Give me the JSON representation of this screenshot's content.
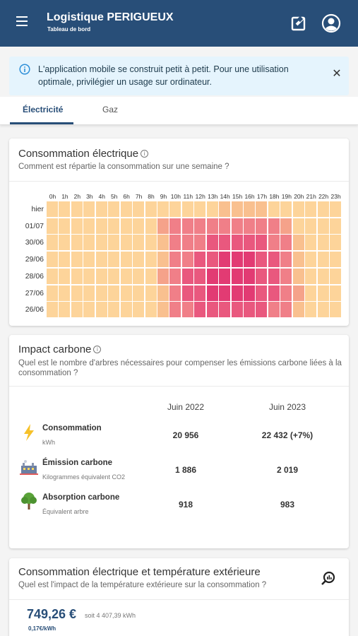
{
  "header": {
    "title": "Logistique PERIGUEUX",
    "subtitle": "Tableau de bord",
    "background": "#284e78"
  },
  "alert": {
    "text": "L'application mobile se construit petit à petit. Pour une utilisation optimale, privilégier un usage sur ordinateur.",
    "close": "✕"
  },
  "tabs": [
    {
      "label": "Électricité",
      "active": true
    },
    {
      "label": "Gaz",
      "active": false
    }
  ],
  "consumption": {
    "title": "Consommation électrique",
    "info": "i",
    "subtitle": "Comment est répartie la consommation sur une semaine ?",
    "hours": [
      "0h",
      "1h",
      "2h",
      "3h",
      "4h",
      "5h",
      "6h",
      "7h",
      "8h",
      "9h",
      "10h",
      "11h",
      "12h",
      "13h",
      "14h",
      "15h",
      "16h",
      "17h",
      "18h",
      "19h",
      "20h",
      "21h",
      "22h",
      "23h"
    ],
    "days": [
      "hier",
      "01/07",
      "30/06",
      "29/06",
      "28/06",
      "27/06",
      "26/06"
    ],
    "palette": [
      "#fdd49a",
      "#f9c08f",
      "#f5a28a",
      "#f07f88",
      "#e9587e",
      "#e23b73"
    ],
    "levels": [
      [
        0,
        0,
        0,
        0,
        0,
        0,
        0,
        0,
        0,
        0,
        0,
        0,
        0,
        0,
        1,
        1,
        1,
        1,
        0,
        0,
        0,
        0,
        0,
        0
      ],
      [
        0,
        0,
        0,
        0,
        0,
        0,
        0,
        0,
        0,
        2,
        3,
        3,
        3,
        3,
        3,
        3,
        3,
        3,
        3,
        2,
        0,
        0,
        0,
        0
      ],
      [
        0,
        0,
        0,
        0,
        0,
        0,
        0,
        0,
        0,
        1,
        3,
        3,
        3,
        4,
        4,
        4,
        4,
        4,
        3,
        3,
        1,
        0,
        0,
        0
      ],
      [
        0,
        0,
        0,
        0,
        0,
        0,
        0,
        0,
        0,
        1,
        3,
        3,
        4,
        4,
        5,
        5,
        5,
        4,
        4,
        3,
        1,
        0,
        0,
        0
      ],
      [
        0,
        0,
        0,
        0,
        0,
        0,
        0,
        0,
        0,
        2,
        3,
        4,
        4,
        5,
        5,
        5,
        5,
        4,
        4,
        3,
        1,
        0,
        0,
        0
      ],
      [
        0,
        0,
        0,
        0,
        0,
        0,
        0,
        0,
        0,
        1,
        3,
        4,
        4,
        5,
        5,
        5,
        5,
        4,
        4,
        3,
        2,
        0,
        0,
        0
      ],
      [
        0,
        0,
        0,
        0,
        0,
        0,
        0,
        0,
        0,
        1,
        3,
        3,
        4,
        4,
        4,
        4,
        4,
        4,
        3,
        3,
        1,
        0,
        0,
        0
      ]
    ]
  },
  "carbon": {
    "title": "Impact carbone",
    "info": "i",
    "subtitle": "Quel est le nombre d'arbres nécessaires pour compenser les émissions carbone liées à la consommation ?",
    "col1": "Juin 2022",
    "col2": "Juin 2023",
    "rows": [
      {
        "label": "Consommation",
        "unit": "kWh",
        "v1": "20 956",
        "v2": "22 432 (+7%)",
        "icon": "lightning-icon"
      },
      {
        "label": "Émission carbone",
        "unit": "Kilogrammes équivalent CO2",
        "v1": "1 886",
        "v2": "2 019",
        "icon": "factory-icon"
      },
      {
        "label": "Absorption carbone",
        "unit": "Équivalent arbre",
        "v1": "918",
        "v2": "983",
        "icon": "tree-icon"
      }
    ]
  },
  "temperature": {
    "title": "Consommation électrique et température extérieure",
    "subtitle": "Quel est l'impact de la température extérieure sur la consommation ?",
    "cost": "749,26 €",
    "kwh": "soit 4 407,39 kWh",
    "rate": "0,17€/kWh"
  }
}
